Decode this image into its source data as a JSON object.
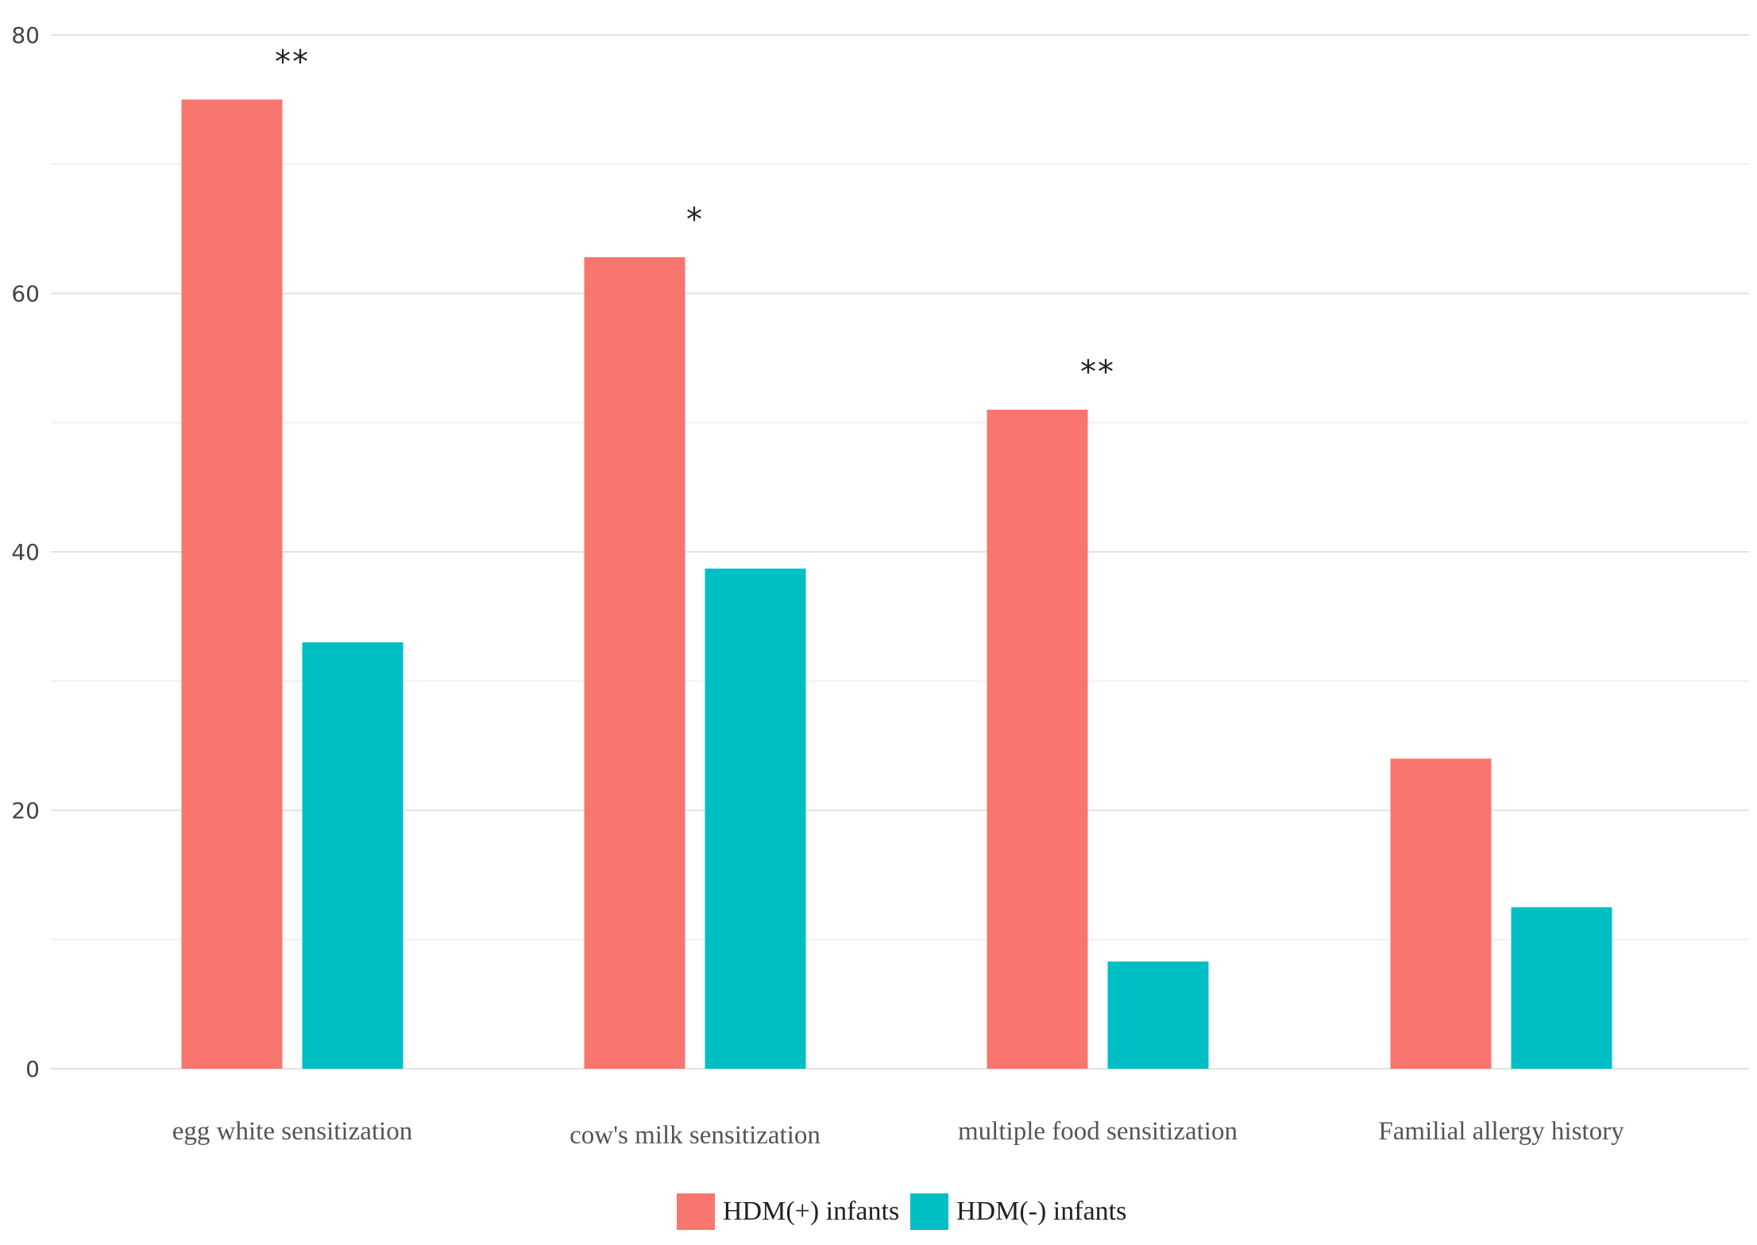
{
  "chart_data": {
    "type": "bar",
    "title": "",
    "xlabel": "",
    "ylabel": "",
    "ylim": [
      0,
      80
    ],
    "yticks": [
      0,
      20,
      40,
      60,
      80
    ],
    "grid": true,
    "legend_position": "bottom-center",
    "categories": [
      "egg white sensitization",
      "cow's milk sensitization",
      "multiple food sensitization",
      "Familial allergy history"
    ],
    "series": [
      {
        "name": "HDM(+) infants",
        "color": "#F8766D",
        "values": [
          75,
          62.8,
          51,
          24
        ]
      },
      {
        "name": "HDM(-) infants",
        "color": "#00BFC4",
        "values": [
          33,
          38.7,
          8.3,
          12.5
        ]
      }
    ],
    "annotations": [
      "**",
      "*",
      "**",
      ""
    ]
  }
}
